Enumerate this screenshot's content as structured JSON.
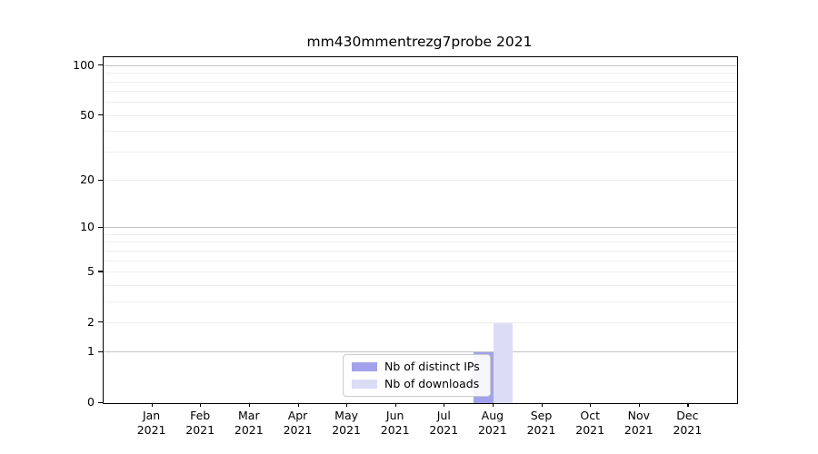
{
  "chart_data": {
    "type": "bar",
    "title": "mm430mmentrezg7probe 2021",
    "categories": [
      "Jan 2021",
      "Feb 2021",
      "Mar 2021",
      "Apr 2021",
      "May 2021",
      "Jun 2021",
      "Jul 2021",
      "Aug 2021",
      "Sep 2021",
      "Oct 2021",
      "Nov 2021",
      "Dec 2021"
    ],
    "series": [
      {
        "name": "Nb of distinct IPs",
        "color": "#a2a2ec",
        "values": [
          0,
          0,
          0,
          0,
          0,
          0,
          0,
          1,
          0,
          0,
          0,
          0
        ]
      },
      {
        "name": "Nb of downloads",
        "color": "#dcdcf7",
        "values": [
          0,
          0,
          0,
          0,
          0,
          0,
          0,
          2,
          0,
          0,
          0,
          0
        ]
      }
    ],
    "xlabel": "",
    "ylabel": "",
    "yscale": "log1p",
    "ylim": [
      0,
      113
    ],
    "yticks": [
      0,
      1,
      2,
      5,
      10,
      20,
      50,
      100
    ],
    "grid": "horizontal",
    "grid_major_values": [
      1,
      10,
      100
    ],
    "grid_minor_values": [
      2,
      3,
      4,
      5,
      6,
      7,
      8,
      9,
      20,
      30,
      40,
      50,
      60,
      70,
      80,
      90
    ],
    "legend_position": "bottom-center"
  },
  "colors": {
    "background": "#ffffff",
    "axis": "#000000",
    "grid_major": "#c3c3c3",
    "grid_minor": "#ededed",
    "legend_border": "#cccccc"
  }
}
